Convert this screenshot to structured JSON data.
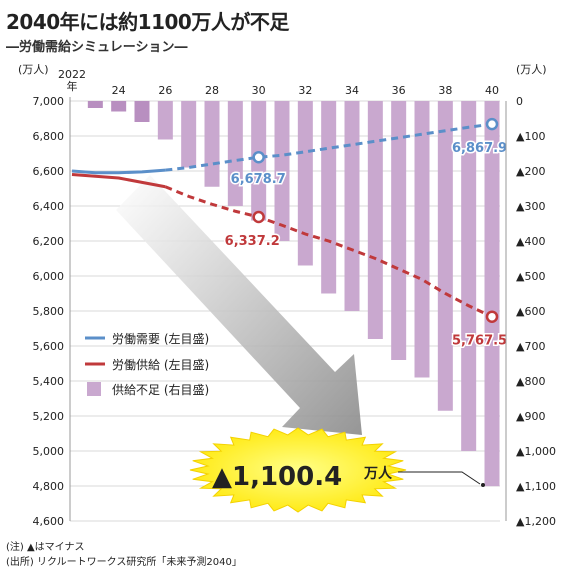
{
  "header": {
    "title": "2040年には約1100万人が不足",
    "subtitle": "―労働需給シミュレーション―"
  },
  "footnotes": {
    "note": "(注) ▲はマイナス",
    "source": "(出所) リクルートワークス研究所「未来予測2040」"
  },
  "chart_data": {
    "type": "line+bar",
    "x_tick_labels": [
      "2022\n年",
      "24",
      "26",
      "28",
      "30",
      "32",
      "34",
      "36",
      "38",
      "40"
    ],
    "x_ticks": [
      2022,
      2024,
      2026,
      2028,
      2030,
      2032,
      2034,
      2036,
      2038,
      2040
    ],
    "left_axis": {
      "unit": "(万人)",
      "range": [
        4600,
        7000
      ],
      "ticks": [
        "7,000",
        "6,800",
        "6,600",
        "6,400",
        "6,200",
        "6,000",
        "5,800",
        "5,600",
        "5,400",
        "5,200",
        "5,000",
        "4,800",
        "4,600"
      ]
    },
    "right_axis": {
      "unit": "(万人)",
      "range": [
        0,
        -1200
      ],
      "ticks": [
        "0",
        "▲100",
        "▲200",
        "▲300",
        "▲400",
        "▲500",
        "▲600",
        "▲700",
        "▲800",
        "▲900",
        "▲1,000",
        "▲1,100",
        "▲1,200"
      ]
    },
    "series": [
      {
        "name": "労働需要 (左目盛)",
        "color": "#5b8fc9",
        "axis": "left",
        "x": [
          2022,
          2023,
          2024,
          2025,
          2026,
          2027,
          2028,
          2029,
          2030,
          2031,
          2032,
          2033,
          2034,
          2035,
          2036,
          2037,
          2038,
          2039,
          2040
        ],
        "values": [
          6600,
          6590,
          6590,
          6595,
          6605,
          6620,
          6640,
          6660,
          6678.7,
          6690,
          6710,
          6730,
          6750,
          6770,
          6790,
          6810,
          6830,
          6850,
          6867.9
        ],
        "solid_until": 2026
      },
      {
        "name": "労働供給 (左目盛)",
        "color": "#c0393b",
        "axis": "left",
        "x": [
          2022,
          2023,
          2024,
          2025,
          2026,
          2027,
          2028,
          2029,
          2030,
          2031,
          2032,
          2033,
          2034,
          2035,
          2036,
          2037,
          2038,
          2039,
          2040
        ],
        "values": [
          6580,
          6570,
          6560,
          6535,
          6510,
          6455,
          6410,
          6370,
          6337.2,
          6290,
          6240,
          6200,
          6150,
          6100,
          6040,
          5980,
          5900,
          5830,
          5767.5
        ],
        "solid_until": 2026
      },
      {
        "name": "供給不足 (右目盛)",
        "color": "#c9a8cf",
        "axis": "right",
        "type": "bar",
        "x": [
          2023,
          2024,
          2025,
          2026,
          2027,
          2028,
          2029,
          2030,
          2031,
          2032,
          2033,
          2034,
          2035,
          2036,
          2037,
          2038,
          2039,
          2040
        ],
        "values": [
          -20,
          -30,
          -60,
          -110,
          -190,
          -245,
          -300,
          -341.5,
          -400,
          -470,
          -550,
          -600,
          -680,
          -740,
          -790,
          -885,
          -1000,
          -1100.4
        ],
        "dark_until": 2025
      }
    ],
    "data_labels": {
      "demand_2030": "6,678.7",
      "demand_2040": "6,867.9",
      "supply_2030": "6,337.2",
      "supply_2040": "5,767.5"
    },
    "callout": {
      "value": "▲1,100.4",
      "unit": "万人"
    }
  }
}
